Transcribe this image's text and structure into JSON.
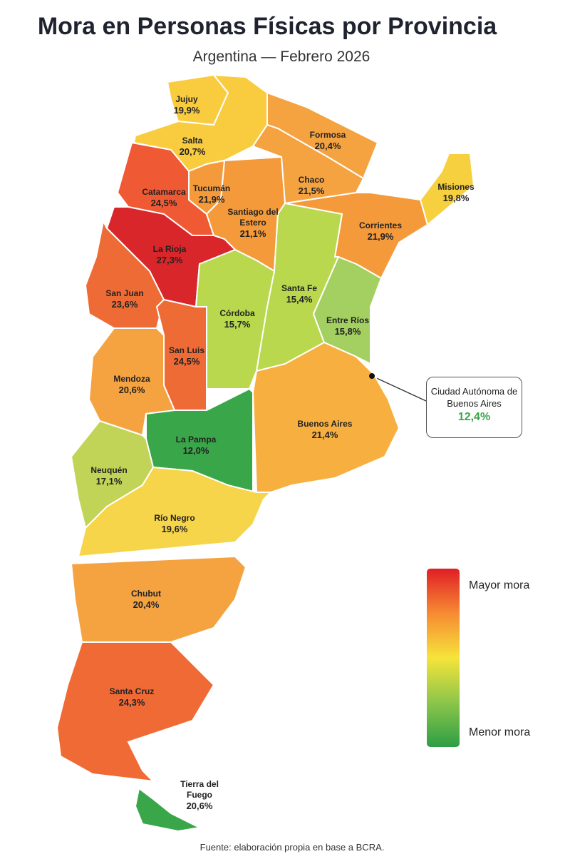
{
  "chart_data": {
    "type": "choropleth",
    "title": "Mora en Personas Físicas por Provincia",
    "subtitle": "Argentina — Febrero 2026",
    "categories": [
      "Jujuy",
      "Salta",
      "Formosa",
      "Chaco",
      "Misiones",
      "Catamarca",
      "Tucumán",
      "Santiago del Estero",
      "Corrientes",
      "La Rioja",
      "San Juan",
      "Santa Fe",
      "Córdoba",
      "Entre Ríos",
      "San Luis",
      "Mendoza",
      "Buenos Aires",
      "La Pampa",
      "Neuquén",
      "Río Negro",
      "Chubut",
      "Santa Cruz",
      "Tierra del Fuego",
      "Ciudad Autónoma de Buenos Aires"
    ],
    "values": [
      19.9,
      20.7,
      20.4,
      21.5,
      19.8,
      24.5,
      21.9,
      21.1,
      21.9,
      27.3,
      23.6,
      15.4,
      15.7,
      15.8,
      24.5,
      20.6,
      21.4,
      12.0,
      17.1,
      19.6,
      20.4,
      24.3,
      20.6,
      12.4
    ],
    "value_labels": [
      "19,9%",
      "20,7%",
      "20,4%",
      "21,5%",
      "19,8%",
      "24,5%",
      "21,9%",
      "21,1%",
      "21,9%",
      "27,3%",
      "23,6%",
      "15,4%",
      "15,7%",
      "15,8%",
      "24,5%",
      "20,6%",
      "21,4%",
      "12,0%",
      "17,1%",
      "19,6%",
      "20,4%",
      "24,3%",
      "20,6%",
      "12,4%"
    ],
    "colors": [
      "#f9cc40",
      "#f9cc40",
      "#f5a340",
      "#f5a340",
      "#f6d03f",
      "#ef5a35",
      "#f59a3a",
      "#f59a3a",
      "#f49a3a",
      "#d9262a",
      "#ef6b35",
      "#b9d84e",
      "#b9d84e",
      "#a3d060",
      "#ef6b35",
      "#f5a340",
      "#f7b040",
      "#3aa64a",
      "#c2d457",
      "#f6d54a",
      "#f5a340",
      "#f06a35",
      "#3aa64a",
      "#3aa64a"
    ],
    "legend": {
      "colors": [
        "#e01f26",
        "#f68a32",
        "#f6e43a",
        "#8cc64a",
        "#2e9e45"
      ],
      "labels": [
        "Mayor mora",
        "Menor mora"
      ]
    },
    "source": "Fuente: elaboración propia en base a BCRA."
  }
}
